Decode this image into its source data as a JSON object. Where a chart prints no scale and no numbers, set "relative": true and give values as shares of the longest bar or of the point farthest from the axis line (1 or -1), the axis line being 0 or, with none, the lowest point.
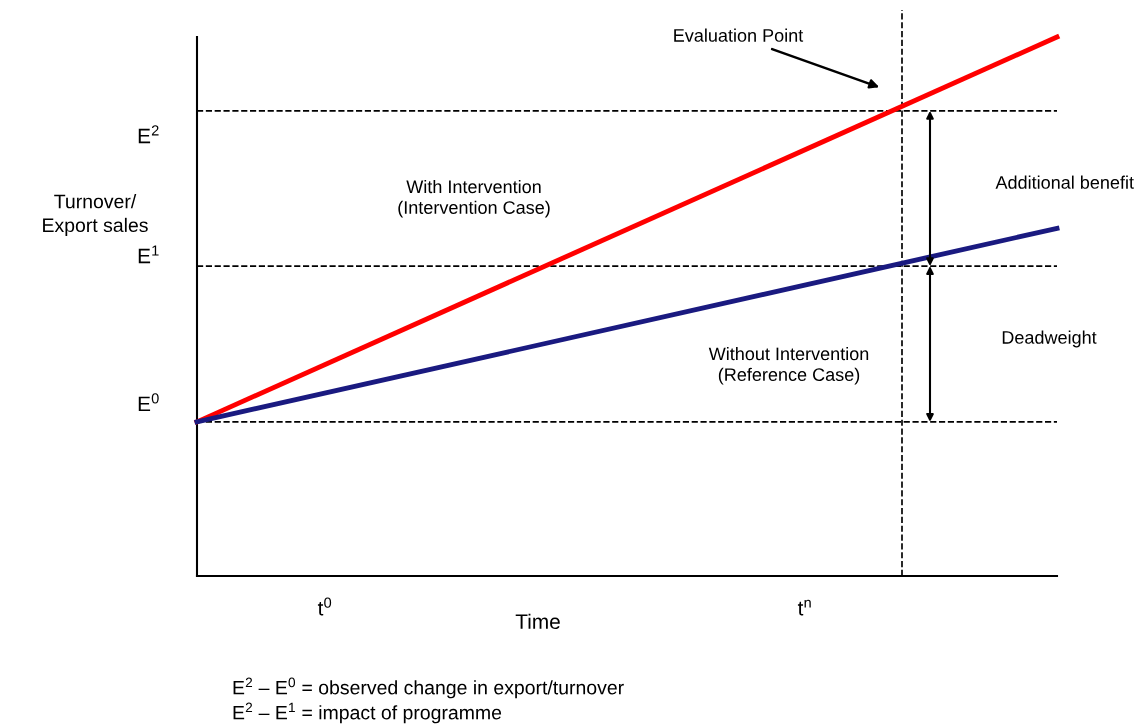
{
  "chart_data": {
    "type": "line",
    "relative": true,
    "ylabel": "Turnover/\nExport sales",
    "xlabel": "Time",
    "categories": [
      null,
      null
    ],
    "series": [
      {
        "name": "With Intervention\n(Intervention Case)",
        "color": "#ff0000",
        "values": [
          0.286,
          1.0
        ]
      },
      {
        "name": "Without Intervention\n(Reference Case)",
        "color": "#1a1a80",
        "values": [
          0.286,
          0.645
        ]
      }
    ],
    "ref_lines": [
      {
        "axis": "y",
        "value": 0.286,
        "label": "E$^{0}$",
        "line_style": "dashed"
      },
      {
        "axis": "y",
        "value": 0.575,
        "label": "E$^{1}$",
        "line_style": "dashed"
      },
      {
        "axis": "y",
        "value": 0.863,
        "label": "E$^{2}$",
        "line_style": "dashed"
      }
    ],
    "annotations": [
      "Evaluation Point",
      "Additional benefit",
      "Deadweight",
      "E$^{2}$ – E$^{0}$ = observed change in export/turnover",
      "E$^{2}$ – E$^{1}$ = impact of programme",
      "t$^{0}$",
      "t$^{n}$"
    ],
    "legend": false,
    "grid": false,
    "marker": "none",
    "line_style": "solid"
  }
}
